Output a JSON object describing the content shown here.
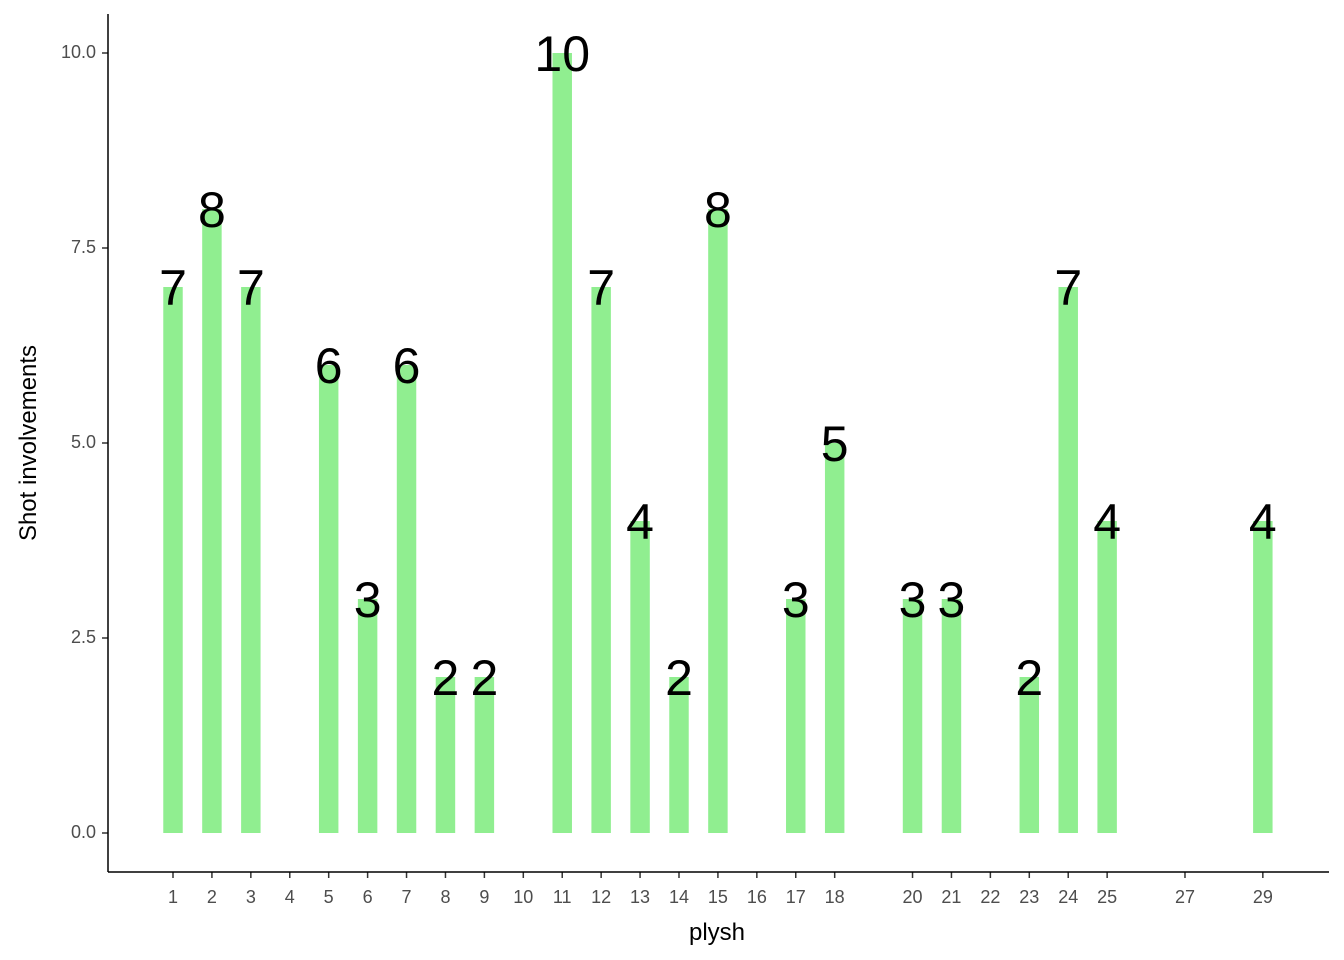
{
  "chart_data": {
    "type": "bar",
    "x_label": "plysh",
    "y_label": "Shot involvements",
    "x": [
      1,
      2,
      3,
      5,
      6,
      7,
      8,
      9,
      11,
      12,
      13,
      14,
      15,
      17,
      18,
      20,
      21,
      23,
      24,
      25,
      29
    ],
    "values": [
      7,
      8,
      7,
      6,
      3,
      6,
      2,
      2,
      10,
      7,
      4,
      2,
      8,
      3,
      5,
      3,
      3,
      2,
      7,
      4,
      4
    ],
    "color": "#90ee90",
    "xlim": [
      -0.67,
      30.7
    ],
    "xticks": [
      1,
      2,
      3,
      4,
      5,
      6,
      7,
      8,
      9,
      10,
      11,
      12,
      13,
      14,
      15,
      16,
      17,
      18,
      20,
      21,
      22,
      23,
      24,
      25,
      27,
      29
    ],
    "ylim": [
      -0.5,
      10.5
    ],
    "yticks": [
      {
        "value": 0,
        "label": "0.0"
      },
      2.5,
      {
        "value": 5,
        "label": "5.0"
      },
      7.5,
      {
        "value": 10,
        "label": "10.0"
      }
    ],
    "grid": false
  }
}
